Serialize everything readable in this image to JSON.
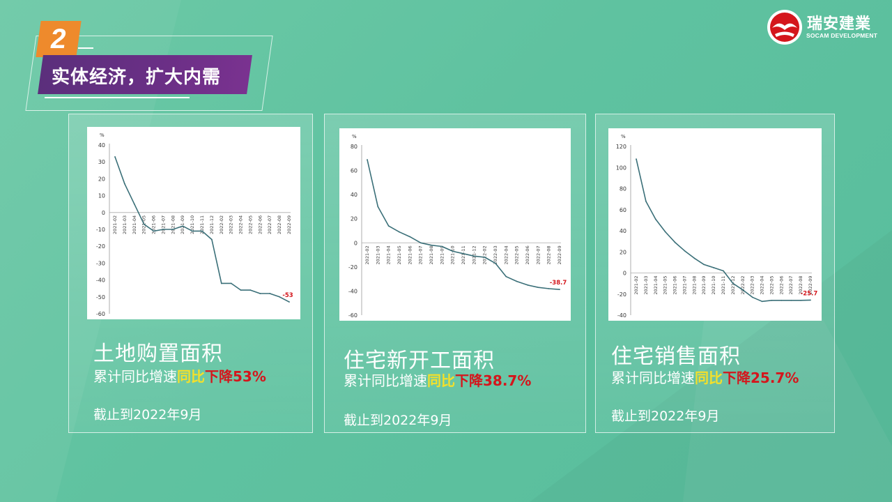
{
  "header": {
    "section_number": "2",
    "section_title": "实体经济，扩大内需"
  },
  "logo": {
    "name_cn": "瑞安建業",
    "name_en": "SOCAM DEVELOPMENT",
    "brand_color": "#d4161c"
  },
  "colors": {
    "accent_banner": "#6b2f86",
    "badge": "#ee8a2c",
    "highlight_yellow": "#f4e02a",
    "highlight_red": "#d4161c",
    "line": "#3a6f78"
  },
  "cards": [
    {
      "title": "土地购置面积",
      "sub_prefix": "累计同比增速",
      "sub_yoy": "同比",
      "sub_change": "下降53%",
      "date": "截止到2022年9月"
    },
    {
      "title": "住宅新开工面积",
      "sub_prefix": "累计同比增速",
      "sub_yoy": "同比",
      "sub_change": "下降38.7%",
      "date": "截止到2022年9月"
    },
    {
      "title": "住宅销售面积",
      "sub_prefix": "累计同比增速",
      "sub_yoy": "同比",
      "sub_change": "下降25.7%",
      "date": "截止到2022年9月"
    }
  ],
  "chart_data": [
    {
      "type": "line",
      "unit": "%",
      "ylim": [
        -60,
        40
      ],
      "yticks": [
        40,
        30,
        20,
        10,
        0,
        -10,
        -20,
        -30,
        -40,
        -50,
        -60
      ],
      "x": [
        "2021-02",
        "2021-03",
        "2021-04",
        "2021-05",
        "2021-06",
        "2021-07",
        "2021-08",
        "2021-09",
        "2021-10",
        "2021-11",
        "2021-12",
        "2022-02",
        "2022-03",
        "2022-04",
        "2022-05",
        "2022-06",
        "2022-07",
        "2022-08",
        "2022-09"
      ],
      "values": [
        33,
        17,
        5,
        -7,
        -11,
        -10,
        -10,
        -8,
        -11,
        -11,
        -16,
        -42,
        -42,
        -46,
        -46,
        -48,
        -48,
        -50,
        -53
      ],
      "end_label": "-53",
      "grid": false
    },
    {
      "type": "line",
      "unit": "%",
      "ylim": [
        -60,
        80
      ],
      "yticks": [
        80,
        60,
        40,
        20,
        0,
        -20,
        -40,
        -60
      ],
      "x": [
        "2021-02",
        "2021-03",
        "2021-04",
        "2021-05",
        "2021-06",
        "2021-07",
        "2021-08",
        "2021-09",
        "2021-10",
        "2021-11",
        "2021-12",
        "2022-02",
        "2022-03",
        "2022-04",
        "2022-05",
        "2022-06",
        "2022-07",
        "2022-08",
        "2022-09"
      ],
      "values": [
        69,
        30,
        14,
        9,
        5,
        0,
        -2,
        -3,
        -7,
        -9,
        -11,
        -12,
        -17,
        -28,
        -32,
        -35,
        -37,
        -38,
        -38.7
      ],
      "end_label": "-38.7",
      "grid": false
    },
    {
      "type": "line",
      "unit": "%",
      "ylim": [
        -40,
        120
      ],
      "yticks": [
        120,
        100,
        80,
        60,
        40,
        20,
        0,
        -20,
        -40
      ],
      "x": [
        "2021-02",
        "2021-03",
        "2021-04",
        "2021-05",
        "2021-06",
        "2021-07",
        "2021-08",
        "2021-09",
        "2021-10",
        "2021-11",
        "2021-12",
        "2022-02",
        "2022-03",
        "2022-04",
        "2022-05",
        "2022-06",
        "2022-07",
        "2022-08",
        "2022-09"
      ],
      "values": [
        108,
        68,
        51,
        39,
        29,
        21,
        14,
        8,
        5,
        2,
        -10,
        -16,
        -23,
        -27,
        -26,
        -26,
        -26,
        -26,
        -25.7
      ],
      "end_label": "-25.7",
      "grid": false
    }
  ]
}
